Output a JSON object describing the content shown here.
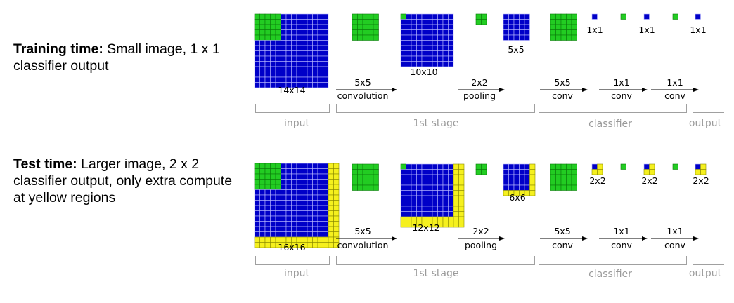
{
  "training": {
    "caption_bold": "Training time:",
    "caption_text": " Small image, 1 x 1 classifier output",
    "input_size": "14x14",
    "stage1_size": "10x10",
    "pool_size": "5x5",
    "out_sizes": [
      "1x1",
      "1x1",
      "1x1"
    ]
  },
  "test": {
    "caption_bold": "Test time:",
    "caption_text": " Larger image, 2 x 2 classifier output, only extra compute at yellow regions",
    "input_size": "16x16",
    "stage1_size": "12x12",
    "pool_size": "6x6",
    "out_sizes": [
      "2x2",
      "2x2",
      "2x2"
    ]
  },
  "ops": [
    {
      "top": "5x5",
      "bottom": "convolution"
    },
    {
      "top": "2x2",
      "bottom": "pooling"
    },
    {
      "top": "5x5",
      "bottom": "conv"
    },
    {
      "top": "1x1",
      "bottom": "conv"
    },
    {
      "top": "1x1",
      "bottom": "conv"
    }
  ],
  "groups": [
    "input",
    "1st stage",
    "classifier",
    "output"
  ],
  "colors": {
    "blue": "#0000c8",
    "green": "#22cc22",
    "yellow": "#f5f01e",
    "grid_light": "#b8b8ff",
    "grid_green": "#0a7a0a",
    "grid_yellow": "#8a8a00",
    "bracket": "#a0a0a0"
  }
}
